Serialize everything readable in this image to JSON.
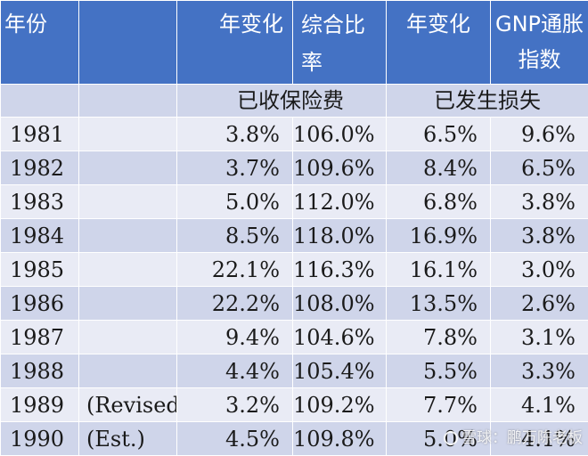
{
  "header": {
    "year": "年份",
    "note": "",
    "premium_change": "年变化",
    "combined_ratio": "综合比率",
    "loss_change": "年变化",
    "gnp_index": "GNP通胀指数"
  },
  "group_labels": {
    "premiums": "已收保险费",
    "losses": "已发生损失"
  },
  "rows": [
    {
      "year": "1981",
      "note": "",
      "premium_change": "3.8%",
      "combined_ratio": "106.0%",
      "loss_change": "6.5%",
      "gnp_index": "9.6%"
    },
    {
      "year": "1982",
      "note": "",
      "premium_change": "3.7%",
      "combined_ratio": "109.6%",
      "loss_change": "8.4%",
      "gnp_index": "6.5%"
    },
    {
      "year": "1983",
      "note": "",
      "premium_change": "5.0%",
      "combined_ratio": "112.0%",
      "loss_change": "6.8%",
      "gnp_index": "3.8%"
    },
    {
      "year": "1984",
      "note": "",
      "premium_change": "8.5%",
      "combined_ratio": "118.0%",
      "loss_change": "16.9%",
      "gnp_index": "3.8%"
    },
    {
      "year": "1985",
      "note": "",
      "premium_change": "22.1%",
      "combined_ratio": "116.3%",
      "loss_change": "16.1%",
      "gnp_index": "3.0%"
    },
    {
      "year": "1986",
      "note": "",
      "premium_change": "22.2%",
      "combined_ratio": "108.0%",
      "loss_change": "13.5%",
      "gnp_index": "2.6%"
    },
    {
      "year": "1987",
      "note": "",
      "premium_change": "9.4%",
      "combined_ratio": "104.6%",
      "loss_change": "7.8%",
      "gnp_index": "3.1%"
    },
    {
      "year": "1988",
      "note": "",
      "premium_change": "4.4%",
      "combined_ratio": "105.4%",
      "loss_change": "5.5%",
      "gnp_index": "3.3%"
    },
    {
      "year": "1989",
      "note": "(Revised)",
      "premium_change": "3.2%",
      "combined_ratio": "109.2%",
      "loss_change": "7.7%",
      "gnp_index": "4.1%"
    },
    {
      "year": "1990",
      "note": "(Est.)",
      "premium_change": "4.5%",
      "combined_ratio": "109.8%",
      "loss_change": "5.0%",
      "gnp_index": "4.1%"
    }
  ],
  "watermark": "雪球：鹏万陈老板",
  "colors": {
    "header_bg": "#4472c4",
    "row_light": "#e9ebf5",
    "row_dark": "#cfd5ea"
  }
}
